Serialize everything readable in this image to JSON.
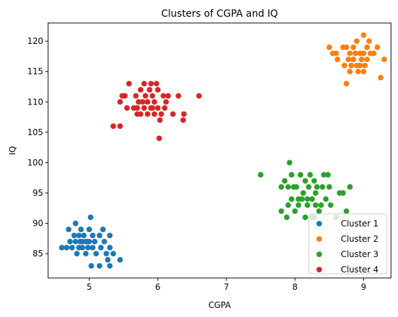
{
  "chart_data": {
    "type": "scatter",
    "title": "Clusters of CGPA and IQ",
    "xlabel": "CGPA",
    "ylabel": "IQ",
    "xlim": [
      4.4,
      9.4
    ],
    "ylim": [
      81,
      123
    ],
    "xticks": [
      5,
      6,
      7,
      8,
      9
    ],
    "yticks": [
      85,
      90,
      95,
      100,
      105,
      110,
      115,
      120
    ],
    "grid": false,
    "legend_position": "bottom-right",
    "series": [
      {
        "name": "Cluster 1",
        "color": "#1f77b4",
        "points": [
          [
            4.6,
            86
          ],
          [
            4.67,
            86
          ],
          [
            4.7,
            89
          ],
          [
            4.72,
            87
          ],
          [
            4.75,
            86
          ],
          [
            4.78,
            88
          ],
          [
            4.8,
            90
          ],
          [
            4.8,
            87
          ],
          [
            4.82,
            85
          ],
          [
            4.85,
            88
          ],
          [
            4.85,
            86
          ],
          [
            4.88,
            89
          ],
          [
            4.9,
            87
          ],
          [
            4.9,
            86
          ],
          [
            4.92,
            88
          ],
          [
            4.95,
            85
          ],
          [
            4.97,
            87
          ],
          [
            4.98,
            86
          ],
          [
            5.0,
            89
          ],
          [
            5.0,
            87
          ],
          [
            5.02,
            91
          ],
          [
            5.05,
            88
          ],
          [
            5.05,
            86
          ],
          [
            5.08,
            87
          ],
          [
            5.1,
            85
          ],
          [
            5.15,
            88
          ],
          [
            5.17,
            86
          ],
          [
            5.2,
            89
          ],
          [
            5.22,
            87
          ],
          [
            5.25,
            85
          ],
          [
            5.27,
            84
          ],
          [
            5.3,
            88
          ],
          [
            5.3,
            86
          ],
          [
            5.35,
            85
          ],
          [
            5.45,
            84
          ],
          [
            5.03,
            83
          ],
          [
            5.15,
            83
          ],
          [
            5.3,
            83
          ],
          [
            4.87,
            87
          ],
          [
            4.95,
            87
          ]
        ]
      },
      {
        "name": "Cluster 2",
        "color": "#ff7f0e",
        "points": [
          [
            8.5,
            119
          ],
          [
            8.55,
            118
          ],
          [
            8.6,
            118
          ],
          [
            8.62,
            117
          ],
          [
            8.7,
            119
          ],
          [
            8.72,
            116
          ],
          [
            8.75,
            113
          ],
          [
            8.75,
            119
          ],
          [
            8.78,
            117
          ],
          [
            8.8,
            115
          ],
          [
            8.8,
            118
          ],
          [
            8.82,
            116
          ],
          [
            8.85,
            117
          ],
          [
            8.85,
            119
          ],
          [
            8.88,
            118
          ],
          [
            8.9,
            116
          ],
          [
            8.9,
            120
          ],
          [
            8.92,
            115
          ],
          [
            8.95,
            118
          ],
          [
            8.97,
            117
          ],
          [
            9.0,
            121
          ],
          [
            9.0,
            118
          ],
          [
            9.02,
            116
          ],
          [
            9.05,
            119
          ],
          [
            9.05,
            117
          ],
          [
            9.08,
            120
          ],
          [
            9.1,
            118
          ],
          [
            9.15,
            118
          ],
          [
            9.2,
            119
          ],
          [
            9.25,
            114
          ],
          [
            9.3,
            117
          ],
          [
            8.95,
            116
          ],
          [
            9.0,
            115
          ]
        ]
      },
      {
        "name": "Cluster 3",
        "color": "#2ca02c",
        "points": [
          [
            7.5,
            98
          ],
          [
            7.8,
            96
          ],
          [
            7.8,
            92
          ],
          [
            7.85,
            97
          ],
          [
            7.88,
            91
          ],
          [
            7.9,
            93
          ],
          [
            7.9,
            96
          ],
          [
            7.92,
            100
          ],
          [
            7.95,
            98
          ],
          [
            7.95,
            94
          ],
          [
            7.98,
            96
          ],
          [
            8.0,
            92
          ],
          [
            8.02,
            96
          ],
          [
            8.05,
            93
          ],
          [
            8.05,
            94
          ],
          [
            8.08,
            98
          ],
          [
            8.1,
            94
          ],
          [
            8.12,
            95
          ],
          [
            8.15,
            97
          ],
          [
            8.15,
            91
          ],
          [
            8.18,
            94
          ],
          [
            8.2,
            96
          ],
          [
            8.22,
            98
          ],
          [
            8.25,
            94
          ],
          [
            8.25,
            91
          ],
          [
            8.28,
            97
          ],
          [
            8.3,
            93
          ],
          [
            8.3,
            95
          ],
          [
            8.32,
            96
          ],
          [
            8.35,
            92
          ],
          [
            8.38,
            93
          ],
          [
            8.4,
            96
          ],
          [
            8.42,
            98
          ],
          [
            8.45,
            94
          ],
          [
            8.48,
            98
          ],
          [
            8.5,
            96
          ],
          [
            8.52,
            93
          ],
          [
            8.6,
            91
          ],
          [
            8.65,
            95
          ],
          [
            8.7,
            95
          ],
          [
            8.75,
            92
          ],
          [
            8.8,
            96
          ],
          [
            8.28,
            91
          ],
          [
            8.18,
            93
          ]
        ]
      },
      {
        "name": "Cluster 4",
        "color": "#d62728",
        "points": [
          [
            5.35,
            106
          ],
          [
            5.45,
            106
          ],
          [
            5.45,
            110
          ],
          [
            5.48,
            111
          ],
          [
            5.52,
            111
          ],
          [
            5.55,
            109
          ],
          [
            5.58,
            113
          ],
          [
            5.65,
            109
          ],
          [
            5.68,
            111
          ],
          [
            5.7,
            108
          ],
          [
            5.72,
            110
          ],
          [
            5.75,
            112
          ],
          [
            5.75,
            108
          ],
          [
            5.78,
            110
          ],
          [
            5.8,
            113
          ],
          [
            5.8,
            109
          ],
          [
            5.82,
            111
          ],
          [
            5.85,
            108
          ],
          [
            5.85,
            110
          ],
          [
            5.88,
            112
          ],
          [
            5.9,
            109
          ],
          [
            5.9,
            113
          ],
          [
            5.92,
            111
          ],
          [
            5.95,
            108
          ],
          [
            5.95,
            110
          ],
          [
            5.98,
            113
          ],
          [
            6.0,
            109
          ],
          [
            6.0,
            112
          ],
          [
            6.02,
            104
          ],
          [
            6.03,
            107
          ],
          [
            6.05,
            108
          ],
          [
            6.08,
            111
          ],
          [
            6.1,
            109
          ],
          [
            6.12,
            110
          ],
          [
            6.15,
            111
          ],
          [
            6.22,
            108
          ],
          [
            6.3,
            111
          ],
          [
            6.37,
            107
          ],
          [
            6.38,
            108
          ],
          [
            6.6,
            111
          ],
          [
            5.7,
            109
          ],
          [
            5.92,
            109
          ]
        ]
      }
    ]
  }
}
